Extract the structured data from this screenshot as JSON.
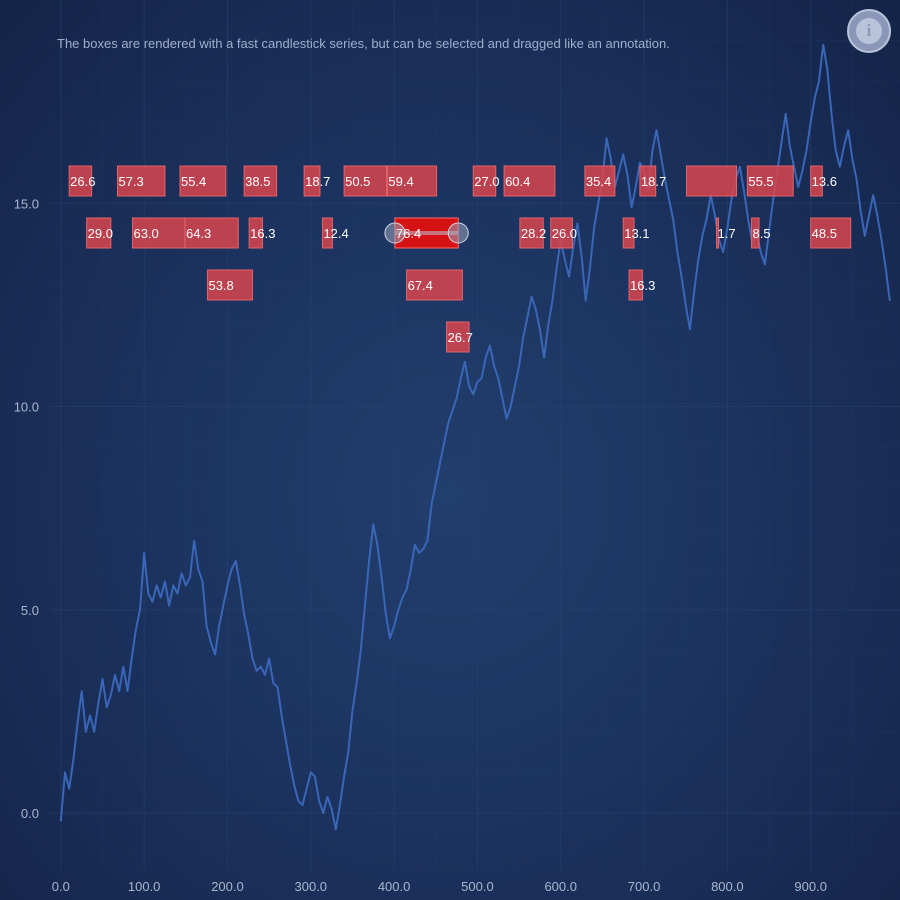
{
  "subtitle": "The boxes are rendered with a fast candlestick series, but can be selected and dragged like an annotation.",
  "info_button": {
    "icon": "info-icon",
    "glyph": "i"
  },
  "colors": {
    "line": "#3a66b8",
    "box_fill": "#d9454e",
    "box_selected": "#e01010",
    "grid": "#2a4270",
    "axis_text": "#a9b6cc"
  },
  "chart_data": {
    "type": "line",
    "xlim": [
      -13,
      1000
    ],
    "ylim": [
      -1.4,
      20
    ],
    "x_ticks": [
      0,
      100,
      200,
      300,
      400,
      500,
      600,
      700,
      800,
      900
    ],
    "x_tick_labels": [
      "0.0",
      "100.0",
      "200.0",
      "300.0",
      "400.0",
      "500.0",
      "600.0",
      "700.0",
      "800.0",
      "900.0"
    ],
    "y_ticks": [
      0,
      5,
      10,
      15
    ],
    "y_tick_labels": [
      "0.0",
      "5.0",
      "10.0",
      "15.0"
    ],
    "grid": true,
    "line_series": {
      "name": "",
      "x": [
        0,
        5,
        10,
        15,
        20,
        25,
        30,
        35,
        40,
        45,
        50,
        55,
        60,
        65,
        70,
        75,
        80,
        85,
        90,
        95,
        100,
        105,
        110,
        115,
        120,
        125,
        130,
        135,
        140,
        145,
        150,
        155,
        160,
        165,
        170,
        175,
        180,
        185,
        190,
        195,
        200,
        205,
        210,
        215,
        220,
        225,
        230,
        235,
        240,
        245,
        250,
        255,
        260,
        265,
        270,
        275,
        280,
        285,
        290,
        295,
        300,
        305,
        310,
        315,
        320,
        325,
        330,
        335,
        340,
        345,
        350,
        355,
        360,
        365,
        370,
        375,
        380,
        385,
        390,
        395,
        400,
        405,
        410,
        415,
        420,
        425,
        430,
        435,
        440,
        445,
        450,
        455,
        460,
        465,
        470,
        475,
        480,
        485,
        490,
        495,
        500,
        505,
        510,
        515,
        520,
        525,
        530,
        535,
        540,
        545,
        550,
        555,
        560,
        565,
        570,
        575,
        580,
        585,
        590,
        595,
        600,
        605,
        610,
        615,
        620,
        625,
        630,
        635,
        640,
        645,
        650,
        655,
        660,
        665,
        670,
        675,
        680,
        685,
        690,
        695,
        700,
        705,
        710,
        715,
        720,
        725,
        730,
        735,
        740,
        745,
        750,
        755,
        760,
        765,
        770,
        775,
        780,
        785,
        790,
        795,
        800,
        805,
        810,
        815,
        820,
        825,
        830,
        835,
        840,
        845,
        850,
        855,
        860,
        865,
        870,
        875,
        880,
        885,
        890,
        895,
        900,
        905,
        910,
        915,
        920,
        925,
        930,
        935,
        940,
        945,
        950,
        955,
        960,
        965,
        970,
        975,
        980,
        985,
        990,
        995
      ],
      "y": [
        -0.2,
        1.0,
        0.6,
        1.3,
        2.2,
        3.0,
        2.0,
        2.4,
        2.0,
        2.7,
        3.3,
        2.6,
        2.9,
        3.4,
        3.0,
        3.6,
        3.0,
        3.8,
        4.5,
        5.0,
        6.4,
        5.4,
        5.2,
        5.6,
        5.3,
        5.7,
        5.1,
        5.6,
        5.4,
        5.9,
        5.6,
        5.8,
        6.7,
        6.0,
        5.7,
        4.6,
        4.2,
        3.9,
        4.6,
        5.1,
        5.6,
        6.0,
        6.2,
        5.6,
        4.9,
        4.4,
        3.8,
        3.5,
        3.6,
        3.4,
        3.8,
        3.2,
        3.1,
        2.4,
        1.8,
        1.2,
        0.7,
        0.3,
        0.2,
        0.6,
        1.0,
        0.9,
        0.3,
        0.0,
        0.4,
        0.1,
        -0.4,
        0.2,
        0.9,
        1.5,
        2.5,
        3.2,
        4.0,
        5.1,
        6.2,
        7.1,
        6.6,
        5.8,
        4.9,
        4.3,
        4.6,
        5.0,
        5.3,
        5.5,
        6.0,
        6.6,
        6.4,
        6.5,
        6.7,
        7.6,
        8.1,
        8.6,
        9.1,
        9.6,
        9.9,
        10.2,
        10.7,
        11.1,
        10.5,
        10.3,
        10.6,
        10.7,
        11.2,
        11.5,
        11.0,
        10.7,
        10.2,
        9.7,
        10.0,
        10.5,
        11.0,
        11.7,
        12.2,
        12.7,
        12.4,
        11.9,
        11.2,
        12.0,
        12.6,
        13.4,
        14.1,
        13.6,
        13.2,
        13.9,
        14.5,
        13.7,
        12.6,
        13.4,
        14.4,
        15.0,
        15.6,
        16.6,
        16.1,
        15.4,
        15.8,
        16.2,
        15.7,
        14.9,
        15.4,
        16.0,
        15.8,
        15.3,
        16.3,
        16.8,
        16.2,
        15.6,
        15.1,
        14.6,
        13.8,
        13.2,
        12.5,
        11.9,
        12.8,
        13.6,
        14.2,
        14.6,
        15.2,
        14.7,
        14.1,
        13.8,
        14.4,
        15.1,
        15.6,
        15.9,
        15.3,
        14.6,
        14.0,
        14.3,
        13.8,
        13.5,
        14.3,
        15.1,
        15.8,
        16.5,
        17.2,
        16.4,
        15.9,
        15.4,
        15.8,
        16.3,
        17.0,
        17.6,
        18.0,
        18.9,
        18.3,
        17.2,
        16.3,
        15.9,
        16.4,
        16.8,
        16.1,
        15.6,
        14.8,
        14.2,
        14.7,
        15.2,
        14.7,
        14.1,
        13.4,
        12.6
      ]
    },
    "boxes": [
      {
        "label": "26.6",
        "x0": 10,
        "x1": 37,
        "row": 0,
        "selected": false
      },
      {
        "label": "57.3",
        "x0": 68,
        "x1": 125,
        "row": 0,
        "selected": false
      },
      {
        "label": "55.4",
        "x0": 143,
        "x1": 198,
        "row": 0,
        "selected": false
      },
      {
        "label": "38.5",
        "x0": 220,
        "x1": 259,
        "row": 0,
        "selected": false
      },
      {
        "label": "18.7",
        "x0": 292,
        "x1": 311,
        "row": 0,
        "selected": false
      },
      {
        "label": "50.5",
        "x0": 340,
        "x1": 391,
        "row": 0,
        "selected": false
      },
      {
        "label": "59.4",
        "x0": 392,
        "x1": 451,
        "row": 0,
        "selected": false
      },
      {
        "label": "27.0",
        "x0": 495,
        "x1": 522,
        "row": 0,
        "selected": false
      },
      {
        "label": "60.4",
        "x0": 532,
        "x1": 593,
        "row": 0,
        "selected": false
      },
      {
        "label": "35.4",
        "x0": 629,
        "x1": 665,
        "row": 0,
        "selected": false
      },
      {
        "label": "18.7",
        "x0": 695,
        "x1": 714,
        "row": 0,
        "selected": false
      },
      {
        "label": "",
        "x0": 751,
        "x1": 811,
        "row": 0,
        "selected": false
      },
      {
        "label": "55.5",
        "x0": 824,
        "x1": 879,
        "row": 0,
        "selected": false
      },
      {
        "label": "13.6",
        "x0": 900,
        "x1": 914,
        "row": 0,
        "selected": false
      },
      {
        "label": "29.0",
        "x0": 31,
        "x1": 60,
        "row": 1,
        "selected": false
      },
      {
        "label": "63.0",
        "x0": 86,
        "x1": 149,
        "row": 1,
        "selected": false
      },
      {
        "label": "64.3",
        "x0": 149,
        "x1": 213,
        "row": 1,
        "selected": false
      },
      {
        "label": "16.3",
        "x0": 226,
        "x1": 242,
        "row": 1,
        "selected": false
      },
      {
        "label": "12.4",
        "x0": 314,
        "x1": 326,
        "row": 1,
        "selected": false
      },
      {
        "label": "76.4",
        "x0": 401,
        "x1": 477,
        "row": 1,
        "selected": true
      },
      {
        "label": "28.2",
        "x0": 551,
        "x1": 579,
        "row": 1,
        "selected": false
      },
      {
        "label": "26.0",
        "x0": 588,
        "x1": 614,
        "row": 1,
        "selected": false
      },
      {
        "label": "13.1",
        "x0": 675,
        "x1": 688,
        "row": 1,
        "selected": false
      },
      {
        "label": "1.7",
        "x0": 787,
        "x1": 789,
        "row": 1,
        "selected": false
      },
      {
        "label": "8.5",
        "x0": 829,
        "x1": 838,
        "row": 1,
        "selected": false
      },
      {
        "label": "48.5",
        "x0": 900,
        "x1": 948,
        "row": 1,
        "selected": false
      },
      {
        "label": "53.8",
        "x0": 176,
        "x1": 230,
        "row": 2,
        "selected": false
      },
      {
        "label": "67.4",
        "x0": 415,
        "x1": 482,
        "row": 2,
        "selected": false
      },
      {
        "label": "16.3",
        "x0": 682,
        "x1": 698,
        "row": 2,
        "selected": false
      },
      {
        "label": "26.7",
        "x0": 463,
        "x1": 490,
        "row": 3,
        "selected": false
      }
    ]
  }
}
